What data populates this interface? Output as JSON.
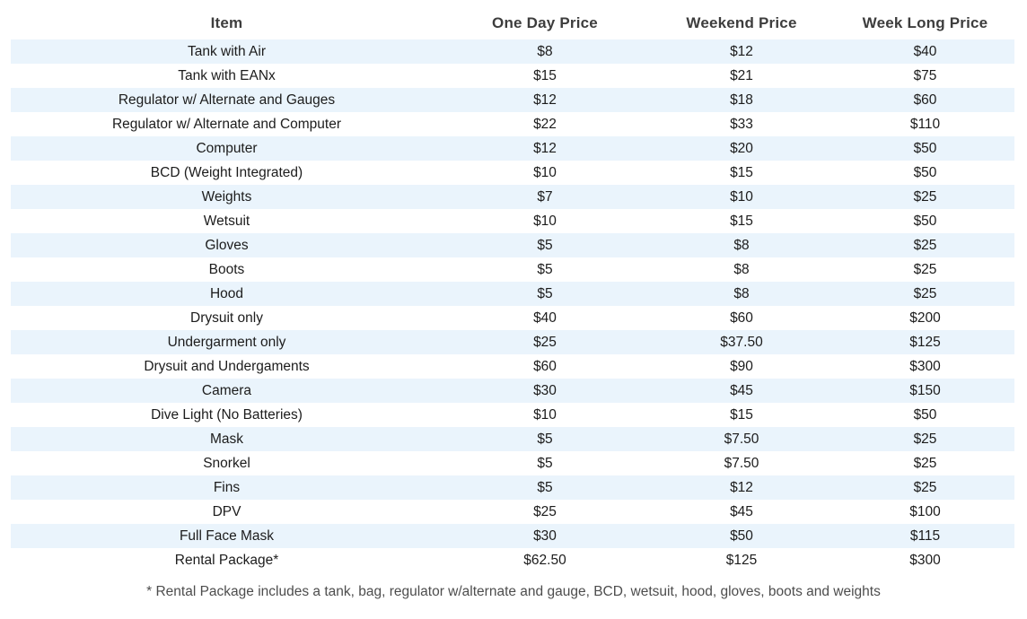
{
  "colors": {
    "stripe": "#eaf4fc",
    "header_text": "#3d3d3d",
    "body_text": "#1c1c1c",
    "footnote_text": "#4d4d4d",
    "page_background": "#ffffff"
  },
  "table": {
    "headers": [
      "Item",
      "One Day Price",
      "Weekend Price",
      "Week Long Price"
    ],
    "rows": [
      [
        "Tank with Air",
        "$8",
        "$12",
        "$40"
      ],
      [
        "Tank with EANx",
        "$15",
        "$21",
        "$75"
      ],
      [
        "Regulator w/ Alternate and Gauges",
        "$12",
        "$18",
        "$60"
      ],
      [
        "Regulator w/ Alternate and Computer",
        "$22",
        "$33",
        "$110"
      ],
      [
        "Computer",
        "$12",
        "$20",
        "$50"
      ],
      [
        "BCD (Weight Integrated)",
        "$10",
        "$15",
        "$50"
      ],
      [
        "Weights",
        "$7",
        "$10",
        "$25"
      ],
      [
        "Wetsuit",
        "$10",
        "$15",
        "$50"
      ],
      [
        "Gloves",
        "$5",
        "$8",
        "$25"
      ],
      [
        "Boots",
        "$5",
        "$8",
        "$25"
      ],
      [
        "Hood",
        "$5",
        "$8",
        "$25"
      ],
      [
        "Drysuit only",
        "$40",
        "$60",
        "$200"
      ],
      [
        "Undergarment only",
        "$25",
        "$37.50",
        "$125"
      ],
      [
        "Drysuit and Undergaments",
        "$60",
        "$90",
        "$300"
      ],
      [
        "Camera",
        "$30",
        "$45",
        "$150"
      ],
      [
        "Dive Light (No Batteries)",
        "$10",
        "$15",
        "$50"
      ],
      [
        "Mask",
        "$5",
        "$7.50",
        "$25"
      ],
      [
        "Snorkel",
        "$5",
        "$7.50",
        "$25"
      ],
      [
        "Fins",
        "$5",
        "$12",
        "$25"
      ],
      [
        "DPV",
        "$25",
        "$45",
        "$100"
      ],
      [
        "Full Face Mask",
        "$30",
        "$50",
        "$115"
      ],
      [
        "Rental Package*",
        "$62.50",
        "$125",
        "$300"
      ]
    ]
  },
  "footnote": "* Rental Package includes a tank, bag, regulator w/alternate and gauge, BCD, wetsuit, hood, gloves, boots and weights"
}
